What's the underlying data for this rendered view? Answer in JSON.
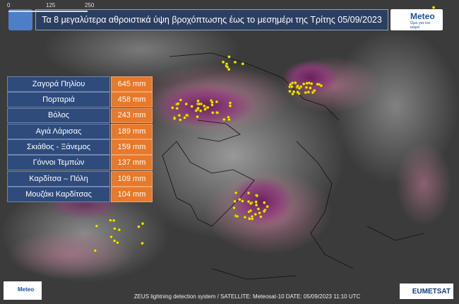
{
  "header": {
    "title": "Τα 8 μεγαλύτερα αθροιστικά ύψη βροχόπτωσης έως το μεσημέρι της Τρίτης 05/09/2023"
  },
  "logo_top": {
    "name": "Meteo",
    "tagline": "Ώρα για τον καιρό"
  },
  "scale_bar": {
    "labels": [
      "0",
      "125",
      "250"
    ]
  },
  "table": {
    "rows": [
      [
        "Ζαγορά Πηλίου",
        "645 mm"
      ],
      [
        "Πορταριά",
        "458 mm"
      ],
      [
        "Βόλος",
        "243 mm"
      ],
      [
        "Αγιά Λάρισας",
        "189 mm"
      ],
      [
        "Σκιάθος - Ξάνεμος",
        "159 mm"
      ],
      [
        "Γόννοι Τεμπών",
        "137 mm"
      ],
      [
        "Καρδίτσα – Πόλη",
        "109 mm"
      ],
      [
        "Μουζάκι Καρδίτσας",
        "104 mm"
      ]
    ]
  },
  "footer": {
    "source": "ZEUS lightning detection system / SATELLITE: Meteosat-10    DATE: 05/09/2023 11:10 UTC",
    "logo_left": "Meteo",
    "logo_right": "EUMETSAT"
  }
}
